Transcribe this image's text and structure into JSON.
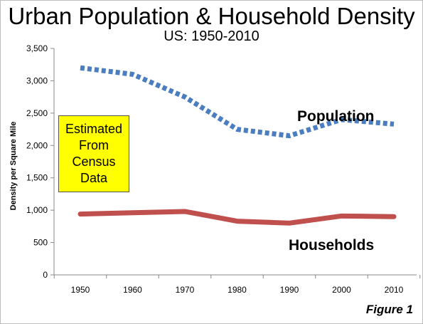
{
  "chart_data": {
    "type": "line",
    "title": "Urban Population & Household Density",
    "subtitle": "US: 1950-2010",
    "xlabel": "",
    "ylabel": "Density per Square Mile",
    "categories": [
      "1950",
      "1960",
      "1970",
      "1980",
      "1990",
      "2000",
      "2010"
    ],
    "ylim": [
      0,
      3500
    ],
    "yticks": [
      0,
      500,
      1000,
      1500,
      2000,
      2500,
      3000,
      3500
    ],
    "ytick_labels": [
      "0",
      "500",
      "1,000",
      "1,500",
      "2,000",
      "2,500",
      "3,000",
      "3,500"
    ],
    "grid": false,
    "series": [
      {
        "name": "Population",
        "values": [
          3200,
          3100,
          2750,
          2250,
          2150,
          2400,
          2330
        ],
        "color": "#4a7ec0",
        "style": "dotted"
      },
      {
        "name": "Households",
        "values": [
          940,
          960,
          980,
          830,
          800,
          910,
          900
        ],
        "color": "#c0504d",
        "style": "solid"
      }
    ],
    "annotation": {
      "lines": [
        "Estimated",
        "From",
        "Census",
        "Data"
      ],
      "background": "#ffff00"
    },
    "figure_label": "Figure 1"
  }
}
